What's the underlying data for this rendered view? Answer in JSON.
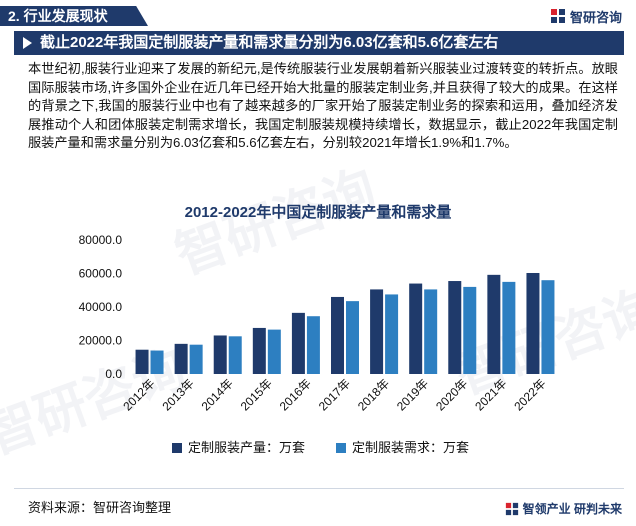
{
  "header": {
    "section_label": "2. 行业发展现状",
    "logo_text": "智研咨询"
  },
  "title_bar": {
    "text": "截止2022年我国定制服装产量和需求量分别为6.03亿套和5.6亿套左右"
  },
  "paragraph": {
    "text": "本世纪初,服装行业迎来了发展的新纪元,是传统服装行业发展朝着新兴服装业过渡转变的转折点。放眼国际服装市场,许多国外企业在近几年已经开始大批量的服装定制业务,并且获得了较大的成果。在这样的背景之下,我国的服装行业中也有了越来越多的厂家开始了服装定制业务的探索和运用，叠加经济发展推动个人和团体服装定制需求增长，我国定制服装规模持续增长，数据显示，截止2022年我国定制服装产量和需求量分别为6.03亿套和5.6亿套左右，分别较2021年增长1.9%和1.7%。"
  },
  "chart_data": {
    "type": "bar",
    "title": "2012-2022年中国定制服装产量和需求量",
    "categories": [
      "2012年",
      "2013年",
      "2014年",
      "2015年",
      "2016年",
      "2017年",
      "2018年",
      "2019年",
      "2020年",
      "2021年",
      "2022年"
    ],
    "series": [
      {
        "name": "定制服装产量：万套",
        "color": "#1f3a6b",
        "values": [
          14500,
          18000,
          23000,
          27500,
          36500,
          46000,
          50500,
          54000,
          55500,
          59200,
          60300
        ]
      },
      {
        "name": "定制服装需求：万套",
        "color": "#2d7fc1",
        "values": [
          14000,
          17500,
          22500,
          26500,
          34500,
          43500,
          47500,
          50500,
          52000,
          55000,
          56000
        ]
      }
    ],
    "yticks": [
      "0.0",
      "20000.0",
      "40000.0",
      "60000.0",
      "80000.0"
    ],
    "ylim": [
      0,
      80000
    ],
    "legend_position": "bottom",
    "grid": false
  },
  "source": {
    "text": "资料来源：智研咨询整理"
  },
  "footer": {
    "slogan": "智领产业 研判未来"
  },
  "watermark": {
    "text": "智研咨询"
  }
}
